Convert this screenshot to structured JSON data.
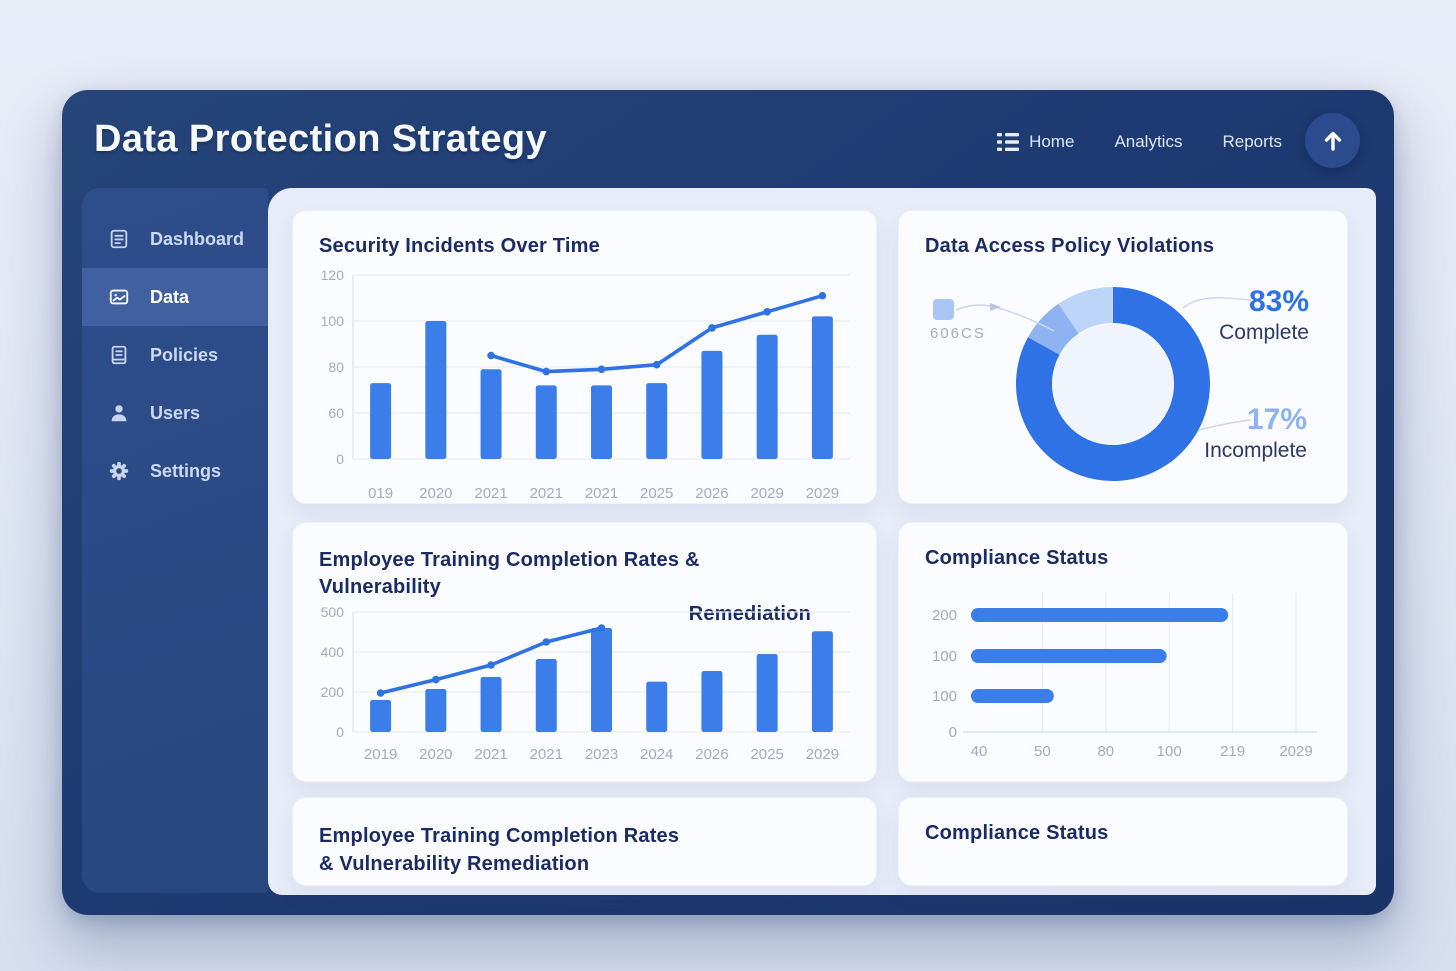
{
  "header": {
    "title": "Data Protection Strategy",
    "nav": [
      {
        "label": "Home",
        "icon": "list-icon"
      },
      {
        "label": "Analytics"
      },
      {
        "label": "Reports"
      }
    ]
  },
  "sidebar": {
    "items": [
      {
        "label": "Dashboard",
        "icon": "dashboard-icon",
        "active": false
      },
      {
        "label": "Data",
        "icon": "data-icon",
        "active": true
      },
      {
        "label": "Policies",
        "icon": "policies-icon",
        "active": false
      },
      {
        "label": "Users",
        "icon": "users-icon",
        "active": false
      },
      {
        "label": "Settings",
        "icon": "settings-icon",
        "active": false
      }
    ]
  },
  "cards": {
    "security": {
      "title": "Security Incidents Over Time"
    },
    "violations": {
      "title": "Data Access Policy Violations",
      "legend_label": "606CS",
      "complete_pct": "83%",
      "complete_label": "Complete",
      "incomplete_pct": "17%",
      "incomplete_label": "Incomplete"
    },
    "training": {
      "title_line1": "Employee Training Completion Rates & Vulnerability",
      "title_line2": "Remediation"
    },
    "compliance": {
      "title": "Compliance Status"
    },
    "training_footer": {
      "title_line1": "Employee Training Completion Rates",
      "title_line2": "& Vulnerability Remediation"
    },
    "compliance_footer": {
      "title": "Compliance Status"
    }
  },
  "colors": {
    "bar_blue": "#3b7de9",
    "line_blue": "#2e72e4",
    "donut_dark": "#2e72e6",
    "donut_mid": "#8fb3f1",
    "donut_light": "#bdd5f8",
    "donut_hole": "#eff4fd",
    "legend_swatch": "#a9c6f4",
    "tick_gray": "#a3abbd",
    "grid": "#e8ebf2",
    "axis": "#dfe3ee",
    "callout_line": "#ccd7ec"
  },
  "chart_data": [
    {
      "id": "security-incidents-chart",
      "type": "bar",
      "title": "Security Incidents Over Time",
      "categories": [
        "019",
        "2020",
        "2021",
        "2021",
        "2021",
        "2025",
        "2026",
        "2029",
        "2029"
      ],
      "series": [
        {
          "name": "incidents-bars",
          "type": "bar",
          "values": [
            73,
            100,
            79,
            72,
            72,
            73,
            87,
            94,
            102
          ]
        },
        {
          "name": "trend-line",
          "type": "line",
          "values": [
            null,
            null,
            85,
            78,
            79,
            81,
            97,
            104,
            111
          ]
        }
      ],
      "ytick_stops": [
        0,
        60,
        80,
        100,
        120
      ],
      "ylim": [
        0,
        120
      ],
      "grid": true,
      "legend_position": "none"
    },
    {
      "id": "policy-violations-chart",
      "type": "pie",
      "title": "Data Access Policy Violations",
      "segments": [
        {
          "label": "Complete",
          "value": 83,
          "color_key": "donut_dark"
        },
        {
          "label": "Incomplete",
          "value": 7.5,
          "color_key": "donut_mid"
        },
        {
          "label": "Incomplete",
          "value": 9.5,
          "color_key": "donut_light"
        }
      ],
      "annotations": {
        "complete": "83% Complete",
        "incomplete": "17% Incomplete"
      },
      "legend_label": "606CS"
    },
    {
      "id": "training-chart",
      "type": "bar",
      "title": "Employee Training Completion Rates & Vulnerability Remediation",
      "categories": [
        "2019",
        "2020",
        "2021",
        "2021",
        "2023",
        "2024",
        "2026",
        "2025",
        "2029"
      ],
      "series": [
        {
          "name": "completion-bars",
          "type": "bar",
          "values": [
            160,
            215,
            275,
            365,
            460,
            252,
            305,
            390,
            452
          ]
        },
        {
          "name": "trend-line",
          "type": "line",
          "values": [
            195,
            262,
            335,
            425,
            460,
            null,
            null,
            null,
            null
          ]
        }
      ],
      "ytick_stops": [
        0,
        200,
        400,
        500
      ],
      "ylim": [
        0,
        500
      ],
      "grid": true,
      "legend_position": "none"
    },
    {
      "id": "compliance-chart",
      "type": "bar",
      "orientation": "horizontal",
      "title": "Compliance Status",
      "row_labels": [
        "200",
        "100",
        "100"
      ],
      "baseline_label": "0",
      "bar_end_tick_index": [
        3.93,
        2.96,
        1.18
      ],
      "xtick_labels": [
        "40",
        "50",
        "80",
        "100",
        "219",
        "2029"
      ],
      "grid": true
    }
  ]
}
